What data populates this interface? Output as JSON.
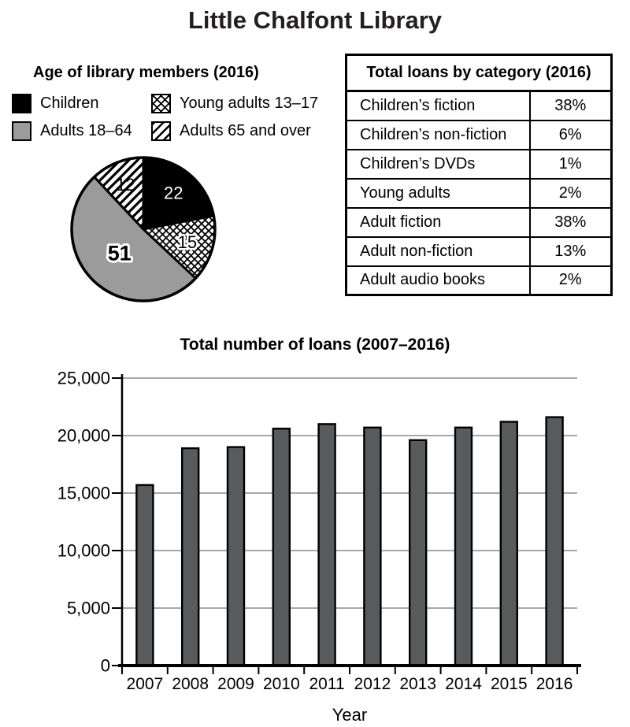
{
  "page_title": "Little Chalfont Library",
  "colors": {
    "bar_fill": "#595a5c",
    "pie_gray": "#9b9b9b",
    "gridline": "#8c8c8c",
    "title_text": "#231f20",
    "text": "#000000"
  },
  "chart_data": [
    {
      "type": "pie",
      "title": "Age of library members (2016)",
      "start_angle": "12 o'clock",
      "direction": "clockwise",
      "slices": [
        {
          "label": "Children",
          "value": 22,
          "pattern": "solid-black"
        },
        {
          "label": "Young adults 13–17",
          "value": 15,
          "pattern": "crosshatch"
        },
        {
          "label": "Adults 18–64",
          "value": 51,
          "pattern": "solid-gray"
        },
        {
          "label": "Adults 65 and over",
          "value": 12,
          "pattern": "diagonal-stripes"
        }
      ]
    },
    {
      "type": "bar",
      "title": "Total number of loans (2007–2016)",
      "xlabel": "Year",
      "ylabel": "",
      "categories": [
        "2007",
        "2008",
        "2009",
        "2010",
        "2011",
        "2012",
        "2013",
        "2014",
        "2015",
        "2016"
      ],
      "values": [
        15700,
        18900,
        19000,
        20600,
        21000,
        20700,
        19600,
        20700,
        21200,
        21600
      ],
      "ylim": [
        0,
        25000
      ],
      "yticks": [
        0,
        5000,
        10000,
        15000,
        20000,
        25000
      ],
      "ytick_labels": [
        "0",
        "5,000",
        "10,000",
        "15,000",
        "20,000",
        "25,000"
      ],
      "grid": true,
      "legend_position": "none"
    },
    {
      "type": "table",
      "title": "Total loans by category (2016)",
      "rows": [
        [
          "Children’s fiction",
          "38%"
        ],
        [
          "Children’s non-fiction",
          "6%"
        ],
        [
          "Children’s DVDs",
          "1%"
        ],
        [
          "Young adults",
          "2%"
        ],
        [
          "Adult fiction",
          "38%"
        ],
        [
          "Adult non-fiction",
          "13%"
        ],
        [
          "Adult audio books",
          "2%"
        ]
      ]
    }
  ]
}
